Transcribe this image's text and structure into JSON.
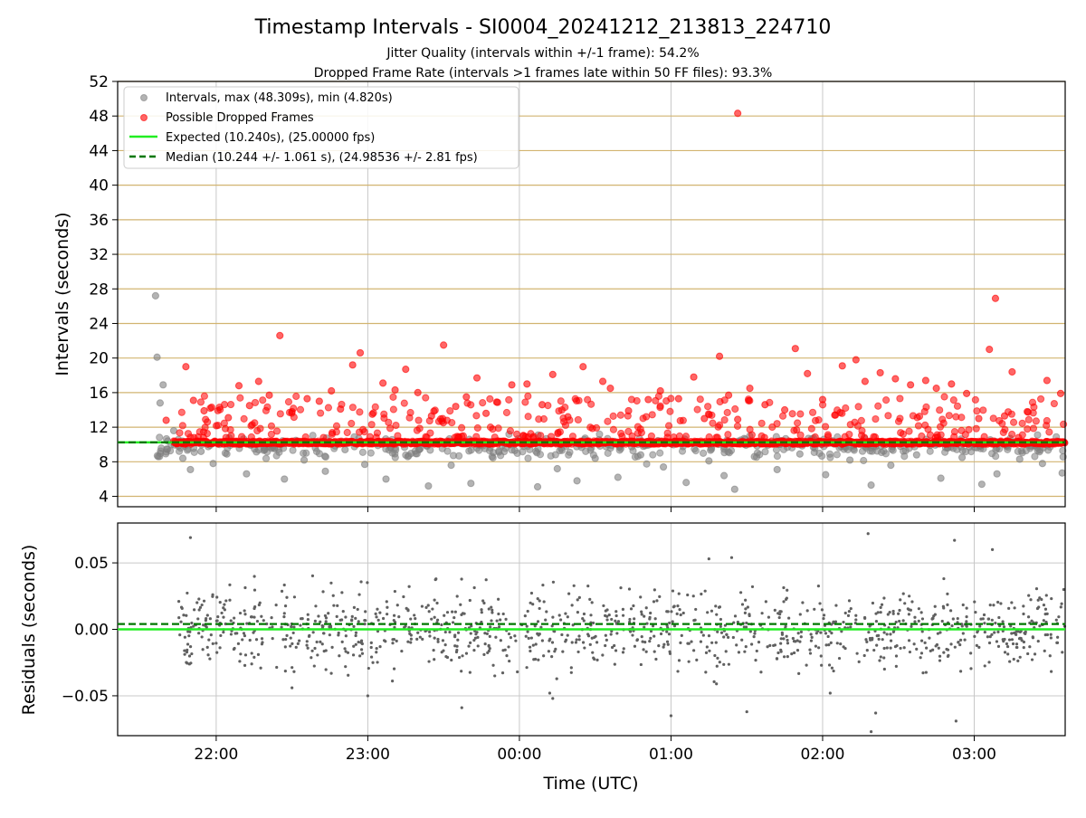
{
  "figure": {
    "title": "Timestamp Intervals - SI0004_20241212_213813_224710",
    "subtitle1": "Jitter Quality (intervals within +/-1 frame): 54.2%",
    "subtitle2": "Dropped Frame Rate (intervals >1 frames late within 50 FF files): 93.3%",
    "xlabel": "Time (UTC)"
  },
  "chart_data": [
    {
      "type": "scatter",
      "ylabel": "Intervals (seconds)",
      "ylim": [
        2.8,
        52
      ],
      "yticks": [
        4,
        8,
        12,
        16,
        20,
        24,
        28,
        32,
        36,
        40,
        44,
        48,
        52
      ],
      "ytick_labels": [
        "4",
        "8",
        "12",
        "16",
        "20",
        "24",
        "28",
        "32",
        "36",
        "40",
        "44",
        "48",
        "52"
      ],
      "xlim_hours": [
        21.35,
        27.6
      ],
      "xticks_hours": [
        22,
        23,
        24,
        25,
        26,
        27
      ],
      "xtick_labels": [
        "22:00",
        "23:00",
        "00:00",
        "01:00",
        "02:00",
        "03:00"
      ],
      "grid": "horizontal lines (tan) at each y tick, vertical lines (grey) at each x tick",
      "legend_position": "upper-left",
      "legend": [
        "Intervals, max (48.309s), min (4.820s)",
        "Possible Dropped Frames",
        "Expected (10.240s), (25.00000 fps)",
        "Median (10.244 +/- 1.061 s), (24.98536 +/- 2.81 fps)"
      ],
      "expected_line": 10.24,
      "median_line": 10.244,
      "series": [
        {
          "name": "Intervals, max (48.309s), min (4.820s)",
          "color": "#808080",
          "x": [
            21.6,
            21.61,
            21.63,
            21.65,
            21.68,
            21.72,
            21.75,
            21.78,
            21.83,
            21.9,
            21.98,
            22.07,
            22.2,
            22.32,
            22.45,
            22.58,
            22.72,
            22.85,
            22.98,
            23.12,
            23.27,
            23.4,
            23.55,
            23.68,
            23.82,
            23.97,
            24.12,
            24.25,
            24.38,
            24.5,
            24.65,
            24.8,
            24.95,
            25.1,
            25.25,
            25.35,
            25.42,
            25.55,
            25.7,
            25.85,
            26.02,
            26.18,
            26.32,
            26.45,
            26.62,
            26.78,
            26.92,
            27.05,
            27.15,
            27.3,
            27.45,
            27.58
          ],
          "y": [
            27.2,
            20.1,
            14.8,
            16.9,
            10.4,
            11.6,
            9.8,
            8.4,
            7.1,
            9.2,
            7.8,
            8.9,
            6.6,
            9.5,
            6.0,
            8.2,
            6.9,
            9.4,
            7.7,
            6.0,
            8.7,
            5.2,
            7.6,
            5.5,
            8.6,
            9.3,
            5.1,
            7.2,
            5.8,
            8.4,
            6.2,
            8.8,
            7.4,
            5.6,
            8.1,
            6.4,
            4.82,
            8.6,
            7.1,
            8.9,
            6.5,
            8.2,
            5.3,
            7.6,
            8.8,
            6.1,
            8.5,
            5.4,
            6.6,
            8.3,
            7.8,
            6.7
          ]
        },
        {
          "name": "Possible Dropped Frames",
          "color": "#ff0000",
          "x": [
            21.67,
            21.8,
            21.85,
            21.92,
            21.97,
            22.08,
            22.15,
            22.22,
            22.28,
            22.35,
            22.42,
            22.5,
            22.6,
            22.68,
            22.76,
            22.82,
            22.9,
            22.95,
            23.03,
            23.1,
            23.18,
            23.25,
            23.33,
            23.42,
            23.5,
            23.58,
            23.65,
            23.72,
            23.78,
            23.85,
            23.95,
            24.05,
            24.15,
            24.22,
            24.32,
            24.42,
            24.55,
            24.6,
            24.72,
            24.85,
            24.93,
            25.05,
            25.15,
            25.22,
            25.32,
            25.38,
            25.44,
            25.52,
            25.62,
            25.75,
            25.82,
            25.9,
            26.0,
            26.08,
            26.13,
            26.22,
            26.28,
            26.38,
            26.48,
            26.58,
            26.68,
            26.75,
            26.85,
            26.95,
            27.03,
            27.1,
            27.14,
            27.2,
            27.25,
            27.35,
            27.48,
            27.57
          ],
          "y": [
            12.8,
            19.0,
            15.1,
            13.9,
            14.3,
            13.1,
            16.8,
            14.5,
            17.3,
            15.7,
            22.6,
            13.8,
            15.3,
            15.0,
            16.2,
            14.1,
            19.2,
            20.6,
            13.5,
            17.1,
            16.3,
            18.7,
            16.0,
            13.3,
            21.5,
            14.4,
            15.5,
            17.7,
            13.6,
            14.9,
            16.9,
            17.0,
            14.6,
            18.1,
            13.2,
            19.0,
            17.3,
            16.5,
            13.9,
            15.2,
            16.2,
            15.3,
            17.8,
            13.0,
            20.2,
            15.7,
            12.9,
            16.5,
            14.6,
            14.0,
            21.1,
            18.2,
            15.2,
            13.4,
            19.1,
            19.8,
            17.3,
            18.3,
            17.6,
            16.9,
            17.4,
            16.5,
            17.0,
            15.9,
            13.0,
            21.0,
            26.9,
            13.3,
            18.4,
            13.8,
            17.4,
            15.9
          ]
        },
        {
          "name": "Possible Dropped Frames (outlier)",
          "color": "#ff0000",
          "x": [
            25.44
          ],
          "y": [
            48.309
          ]
        }
      ]
    },
    {
      "type": "scatter",
      "ylabel": "Residuals (seconds)",
      "ylim": [
        -0.08,
        0.08
      ],
      "yticks": [
        -0.05,
        0.0,
        0.05
      ],
      "ytick_labels": [
        "−0.05",
        "0.00",
        "0.05"
      ],
      "xlim_hours": [
        21.35,
        27.6
      ],
      "xticks_hours": [
        22,
        23,
        24,
        25,
        26,
        27
      ],
      "xtick_labels": [
        "22:00",
        "23:00",
        "00:00",
        "01:00",
        "02:00",
        "03:00"
      ],
      "grid": "both",
      "zero_line": 0.0,
      "median_offset": 0.004,
      "x_range_hours": [
        21.65,
        27.6
      ],
      "series": [
        {
          "color": "#606060",
          "x": [
            21.83,
            22.5,
            23.0,
            23.45,
            23.62,
            24.2,
            24.22,
            25.0,
            25.25,
            25.3,
            25.4,
            25.5,
            26.05,
            26.3,
            26.32,
            26.35,
            26.87,
            26.88,
            27.12
          ],
          "y": [
            0.069,
            -0.044,
            -0.05,
            0.038,
            -0.059,
            -0.048,
            -0.052,
            -0.065,
            0.053,
            -0.041,
            0.054,
            -0.062,
            -0.048,
            0.072,
            -0.077,
            -0.063,
            0.067,
            -0.069,
            0.06
          ]
        }
      ]
    }
  ]
}
